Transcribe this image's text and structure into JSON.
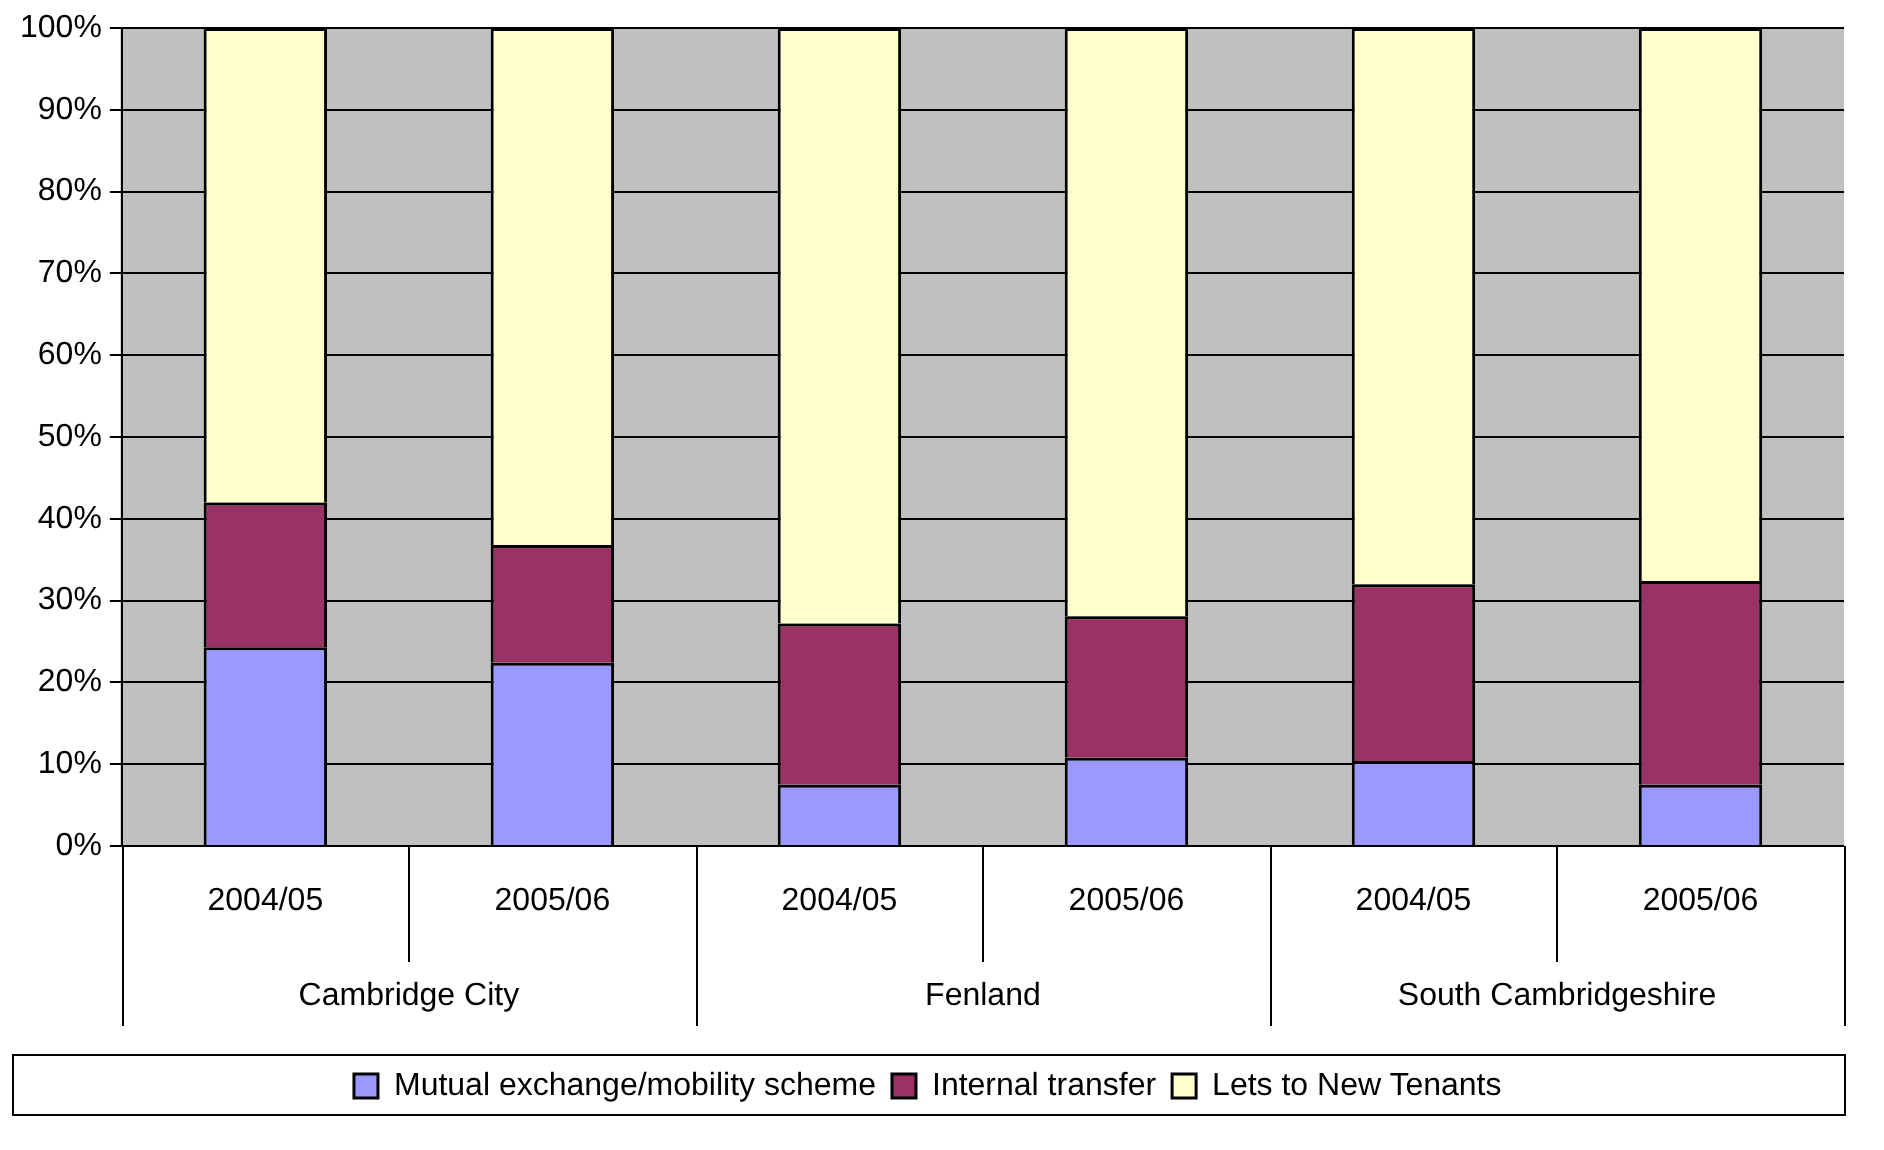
{
  "chart_data": {
    "type": "bar",
    "stacked": true,
    "categories": [
      "2004/05",
      "2005/06",
      "2004/05",
      "2005/06",
      "2004/05",
      "2005/06"
    ],
    "series": [
      {
        "name": "Mutual exchange/mobility scheme",
        "color": "#9999ff",
        "values": [
          24.3,
          22.4,
          7.5,
          10.8,
          10.4,
          7.5
        ]
      },
      {
        "name": "Internal transfer",
        "color": "#993366",
        "values": [
          17.7,
          14.4,
          19.7,
          17.3,
          21.6,
          24.9
        ]
      },
      {
        "name": "Lets to New Tenants",
        "color": "#ffffcc",
        "values": [
          58.0,
          63.2,
          72.8,
          71.9,
          68.0,
          67.6
        ]
      }
    ],
    "ylim": [
      0,
      100
    ],
    "yticks": [
      {
        "value": 0,
        "label": "0%"
      },
      {
        "value": 10,
        "label": "10%"
      },
      {
        "value": 20,
        "label": "20%"
      },
      {
        "value": 30,
        "label": "30%"
      },
      {
        "value": 40,
        "label": "40%"
      },
      {
        "value": 50,
        "label": "50%"
      },
      {
        "value": 60,
        "label": "60%"
      },
      {
        "value": 70,
        "label": "70%"
      },
      {
        "value": 80,
        "label": "80%"
      },
      {
        "value": 90,
        "label": "90%"
      },
      {
        "value": 100,
        "label": "100%"
      }
    ],
    "grid": "y",
    "legend": "bottom",
    "annotations": [
      "Cambridge City",
      "Fenland",
      "South Cambridgeshire"
    ]
  }
}
